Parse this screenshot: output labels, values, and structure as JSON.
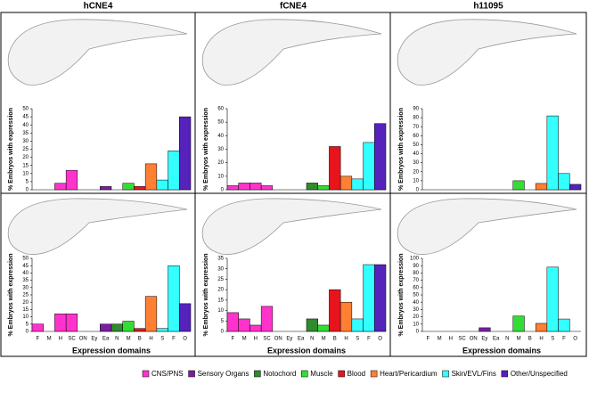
{
  "column_titles": [
    "hCNE4",
    "fCNE4",
    "h11095"
  ],
  "y_label": "% Embryos with expression",
  "x_label": "Expression domains",
  "categories": [
    "F",
    "M",
    "H",
    "SC",
    "ON",
    "Ey",
    "Ea",
    "N",
    "M",
    "B",
    "H",
    "S",
    "F",
    "O"
  ],
  "bar_colors": [
    "#ff33cc",
    "#ff33cc",
    "#ff33cc",
    "#ff33cc",
    "#7a1fa2",
    "#7a1fa2",
    "#7a1fa2",
    "#2e8b2e",
    "#33dd33",
    "#e8141c",
    "#ff7f33",
    "#33ffff",
    "#33ffff",
    "#5522bb"
  ],
  "legend": [
    {
      "name": "CNS/PNS",
      "color": "#ff33cc"
    },
    {
      "name": "Sensory Organs",
      "color": "#7a1fa2"
    },
    {
      "name": "Notochord",
      "color": "#2e8b2e"
    },
    {
      "name": "Muscle",
      "color": "#33dd33"
    },
    {
      "name": "Blood",
      "color": "#e8141c"
    },
    {
      "name": "Heart/Pericardium",
      "color": "#ff7f33"
    },
    {
      "name": "Skin/EVL/Fins",
      "color": "#33ffff"
    },
    {
      "name": "Other/Unspecified",
      "color": "#5522bb"
    }
  ],
  "chart_data": [
    {
      "type": "bar",
      "values": [
        0,
        0,
        4,
        12,
        0,
        0,
        2,
        0,
        4,
        2,
        16,
        6,
        24,
        45
      ],
      "ylim": [
        0,
        50
      ],
      "yticks": [
        0,
        5,
        10,
        15,
        20,
        25,
        30,
        35,
        40,
        45,
        50
      ]
    },
    {
      "type": "bar",
      "values": [
        3,
        5,
        5,
        3,
        0,
        0,
        0,
        5,
        3,
        32,
        10,
        8,
        35,
        49
      ],
      "ylim": [
        0,
        60
      ],
      "yticks": [
        0,
        10,
        20,
        30,
        40,
        50,
        60
      ]
    },
    {
      "type": "bar",
      "values": [
        0,
        0,
        0,
        0,
        0,
        0,
        0,
        0,
        10,
        0,
        7,
        82,
        18,
        6
      ],
      "ylim": [
        0,
        90
      ],
      "yticks": [
        0,
        10,
        20,
        30,
        40,
        50,
        60,
        70,
        80,
        90
      ]
    },
    {
      "type": "bar",
      "values": [
        5,
        0,
        12,
        12,
        0,
        0,
        5,
        5,
        7,
        2,
        24,
        2,
        45,
        19
      ],
      "ylim": [
        0,
        50
      ],
      "yticks": [
        0,
        5,
        10,
        15,
        20,
        25,
        30,
        35,
        40,
        45,
        50
      ]
    },
    {
      "type": "bar",
      "values": [
        9,
        6,
        3,
        12,
        0,
        0,
        0,
        6,
        3,
        20,
        14,
        6,
        32,
        32
      ],
      "ylim": [
        0,
        35
      ],
      "yticks": [
        0,
        5,
        10,
        15,
        20,
        25,
        30,
        35
      ]
    },
    {
      "type": "bar",
      "values": [
        0,
        0,
        0,
        0,
        0,
        5,
        0,
        0,
        21,
        0,
        11,
        88,
        17,
        0
      ],
      "ylim": [
        0,
        100
      ],
      "yticks": [
        0,
        10,
        20,
        30,
        40,
        50,
        60,
        70,
        80,
        90,
        100
      ]
    }
  ]
}
